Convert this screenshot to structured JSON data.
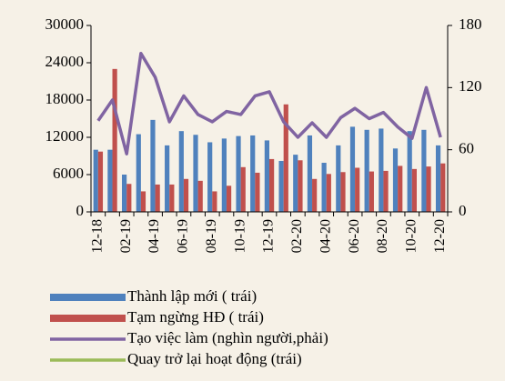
{
  "chart_data": {
    "type": "bar",
    "categories": [
      "12-18",
      null,
      "02-19",
      null,
      "04-19",
      null,
      "06-19",
      null,
      "08-19",
      null,
      "10-19",
      null,
      "12-19",
      null,
      "02-20",
      null,
      "04-20",
      null,
      "06-20",
      null,
      "08-20",
      null,
      "10-20",
      null,
      "12-20"
    ],
    "series": [
      {
        "name": "Thành lập mới ( trái)",
        "color": "#4f81bd",
        "values": [
          10000,
          10000,
          6000,
          12500,
          14800,
          10700,
          13000,
          12400,
          11200,
          11800,
          12200,
          12300,
          11500,
          8200,
          9200,
          12300,
          7900,
          10700,
          13700,
          13200,
          13400,
          10200,
          13000,
          13200,
          10700
        ]
      },
      {
        "name": "Tạm ngừng HĐ ( trái)",
        "color": "#c0504d",
        "values": [
          9700,
          23000,
          4500,
          3300,
          4400,
          4400,
          5300,
          5000,
          3300,
          4200,
          7200,
          6300,
          8500,
          17300,
          8300,
          5300,
          6100,
          6400,
          7100,
          6500,
          6600,
          7400,
          6900,
          7300,
          7800
        ]
      },
      {
        "name": "Tạo việc làm (nghìn người,phải)",
        "color": "#8064a2",
        "axis": "y2",
        "type": "line",
        "values": [
          88,
          108,
          56,
          153,
          130,
          87,
          112,
          94,
          87,
          97,
          94,
          112,
          116,
          87,
          72,
          86,
          72,
          91,
          100,
          90,
          96,
          82,
          71,
          120,
          72
        ]
      },
      {
        "name": "Quay trở lại hoạt động (trái)",
        "color": "#9bbb59",
        "type": "line",
        "values": [
          null,
          null,
          null,
          null,
          null,
          null,
          null,
          null,
          null,
          null,
          null,
          null,
          null,
          null,
          null,
          null,
          null,
          null,
          null,
          null,
          null,
          null,
          null,
          null,
          null
        ]
      }
    ],
    "ylim": [
      0,
      30000
    ],
    "yticks": [
      0,
      6000,
      12000,
      18000,
      24000,
      30000
    ],
    "y2lim": [
      0,
      180
    ],
    "y2ticks": [
      0,
      60,
      120,
      180
    ]
  }
}
